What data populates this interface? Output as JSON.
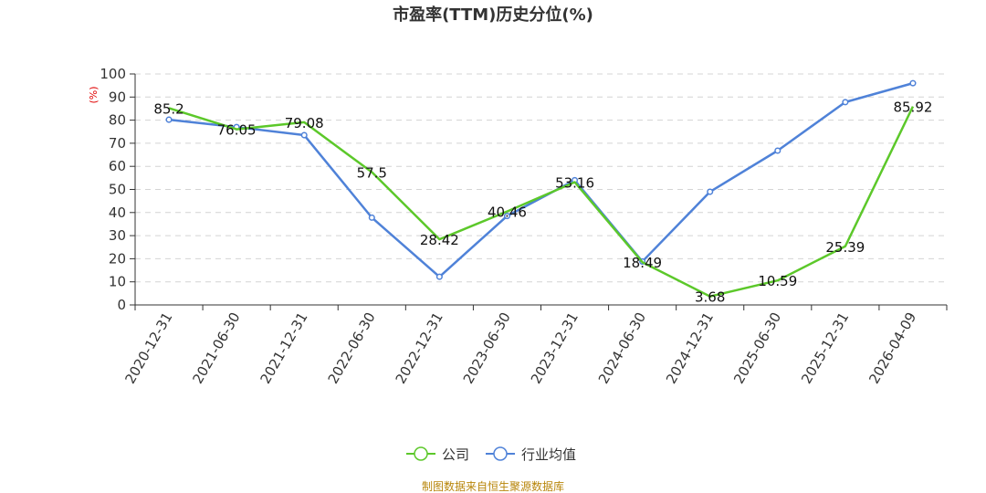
{
  "chart_data": {
    "type": "line",
    "title": "市盈率(TTM)历史分位(%)",
    "ylabel": "(%)",
    "xlabel": "",
    "ylim": [
      0,
      100
    ],
    "yticks": [
      0,
      10,
      20,
      30,
      40,
      50,
      60,
      70,
      80,
      90,
      100
    ],
    "grid": true,
    "legend_position": "bottom",
    "categories": [
      "2020-12-31",
      "2021-06-30",
      "2021-12-31",
      "2022-06-30",
      "2022-12-31",
      "2023-06-30",
      "2023-12-31",
      "2024-06-30",
      "2024-12-31",
      "2025-06-30",
      "2025-12-31",
      "2026-04-09"
    ],
    "series": [
      {
        "name": "公司",
        "color": "#5cc82a",
        "values": [
          85.2,
          76.05,
          79.08,
          57.5,
          28.42,
          40.46,
          53.16,
          18.49,
          3.68,
          10.59,
          25.39,
          85.92
        ],
        "labels": [
          "85.2",
          "76.05",
          "79.08",
          "57.5",
          "28.42",
          "40.46",
          "53.16",
          "18.49",
          "3.68",
          "10.59",
          "25.39",
          "85.92"
        ]
      },
      {
        "name": "行业均值",
        "color": "#4f82d8",
        "values": [
          80.2,
          77.0,
          73.5,
          37.8,
          12.2,
          38.5,
          54.0,
          18.8,
          49.0,
          66.8,
          87.8,
          96.0
        ]
      }
    ],
    "source": "制图数据来自恒生聚源数据库"
  }
}
